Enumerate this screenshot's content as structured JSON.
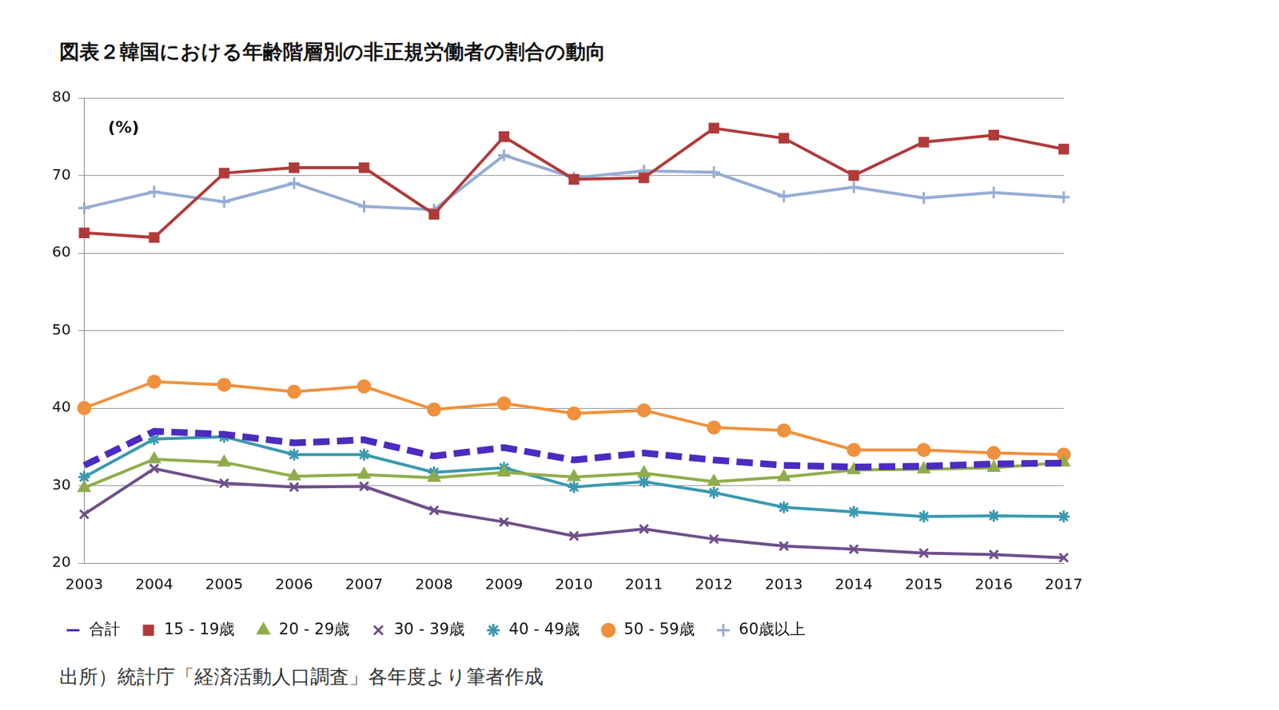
{
  "chart_data": {
    "type": "line",
    "title": "図表２韓国における年齢階層別の非正規労働者の割合の動向",
    "annotation": "(%)",
    "source": "出所）統計庁「経済活動人口調査」各年度より筆者作成",
    "categories": [
      "2003",
      "2004",
      "2005",
      "2006",
      "2007",
      "2008",
      "2009",
      "2010",
      "2011",
      "2012",
      "2013",
      "2014",
      "2015",
      "2016",
      "2017"
    ],
    "series": [
      {
        "name": "合計",
        "color": "#4b2bc0",
        "marker": "none",
        "line_style": "dashed",
        "values": [
          32.6,
          37.0,
          36.6,
          35.5,
          35.9,
          33.8,
          34.9,
          33.3,
          34.2,
          33.3,
          32.6,
          32.4,
          32.5,
          32.8,
          32.9
        ]
      },
      {
        "name": "15 - 19歳",
        "color": "#b03a3a",
        "marker": "square",
        "line_style": "solid",
        "values": [
          62.6,
          62.0,
          70.3,
          71.0,
          71.0,
          65.0,
          75.0,
          69.5,
          69.7,
          76.1,
          74.8,
          70.0,
          74.3,
          75.2,
          73.4
        ]
      },
      {
        "name": "20 - 29歳",
        "color": "#8fac4a",
        "marker": "triangle",
        "line_style": "solid",
        "values": [
          29.7,
          33.4,
          33.0,
          31.2,
          31.4,
          31.0,
          31.7,
          31.1,
          31.6,
          30.5,
          31.1,
          32.0,
          32.1,
          32.3,
          33.0
        ]
      },
      {
        "name": "30 - 39歳",
        "color": "#6e4f8a",
        "marker": "x",
        "line_style": "solid",
        "values": [
          26.3,
          32.2,
          30.3,
          29.8,
          29.9,
          26.8,
          25.3,
          23.5,
          24.4,
          23.1,
          22.2,
          21.8,
          21.3,
          21.1,
          20.7
        ]
      },
      {
        "name": "40 - 49歳",
        "color": "#3a98b0",
        "marker": "star",
        "line_style": "solid",
        "values": [
          31.1,
          36.0,
          36.3,
          34.0,
          34.0,
          31.7,
          32.3,
          29.8,
          30.5,
          29.1,
          27.2,
          26.6,
          26.0,
          26.1,
          26.0
        ]
      },
      {
        "name": "50 - 59歳",
        "color": "#f0903c",
        "marker": "circle",
        "line_style": "solid",
        "values": [
          40.0,
          43.4,
          43.0,
          42.1,
          42.8,
          39.8,
          40.6,
          39.3,
          39.7,
          37.5,
          37.1,
          34.6,
          34.6,
          34.2,
          34.0
        ]
      },
      {
        "name": "60歳以上",
        "color": "#95acd4",
        "marker": "plus",
        "line_style": "solid",
        "values": [
          65.8,
          67.9,
          66.6,
          69.0,
          66.0,
          65.6,
          72.6,
          69.7,
          70.6,
          70.4,
          67.3,
          68.5,
          67.1,
          67.8,
          67.2
        ]
      }
    ],
    "ylim": [
      20,
      80
    ],
    "yticks": [
      20,
      30,
      40,
      50,
      60,
      70,
      80
    ],
    "grid": true,
    "legend": "bottom"
  }
}
